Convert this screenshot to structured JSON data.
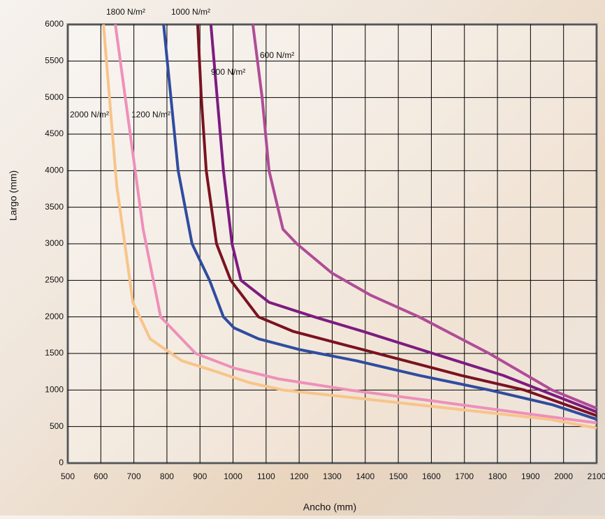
{
  "chart_data": {
    "type": "line",
    "x_label": "Ancho (mm)",
    "y_label": "Largo  (mm)",
    "xlim": [
      500,
      2100
    ],
    "ylim": [
      0,
      6000
    ],
    "xticks": [
      500,
      600,
      700,
      800,
      900,
      1000,
      1100,
      1200,
      1300,
      1400,
      1500,
      1600,
      1700,
      1800,
      1900,
      2000,
      2100
    ],
    "yticks": [
      0,
      500,
      1000,
      1500,
      2000,
      2500,
      3000,
      3500,
      4000,
      4500,
      5000,
      5500,
      6000
    ],
    "grid": true,
    "series": [
      {
        "name": "2000 N/m²",
        "color": "#f8c48a",
        "x": [
          608,
          648,
          697,
          749,
          845,
          950,
          1050,
          1151,
          1352,
          1553,
          1754,
          1955,
          2100
        ],
        "values": [
          6000,
          3800,
          2200,
          1700,
          1400,
          1250,
          1100,
          1000,
          900,
          800,
          700,
          600,
          480
        ]
      },
      {
        "name": "1800 N/m²",
        "color": "#ee90b9",
        "x": [
          644,
          728,
          781,
          887,
          1003,
          1140,
          1352,
          1605,
          1849,
          2100
        ],
        "values": [
          6000,
          3200,
          2000,
          1500,
          1300,
          1150,
          1000,
          850,
          700,
          550
        ]
      },
      {
        "name": "1200 N/m²",
        "color": "#2f4c9f",
        "x": [
          790,
          834,
          876,
          929,
          971,
          1003,
          1077,
          1204,
          1373,
          1563,
          1775,
          1965,
          2100
        ],
        "values": [
          6000,
          4000,
          3000,
          2500,
          2000,
          1850,
          1700,
          1550,
          1400,
          1200,
          1000,
          800,
          600
        ]
      },
      {
        "name": "1000 N/m²",
        "color": "#7a1220",
        "x": [
          893,
          904,
          919,
          950,
          993,
          1077,
          1183,
          1352,
          1521,
          1690,
          1881,
          2100
        ],
        "values": [
          6000,
          5000,
          4000,
          3000,
          2500,
          2000,
          1800,
          1600,
          1400,
          1200,
          1000,
          650
        ]
      },
      {
        "name": "900 N/m²",
        "color": "#7e1b80",
        "x": [
          933,
          971,
          997,
          1024,
          1109,
          1246,
          1394,
          1605,
          1817,
          2100
        ],
        "values": [
          6000,
          4000,
          3000,
          2500,
          2200,
          2000,
          1800,
          1500,
          1200,
          700
        ]
      },
      {
        "name": "600 N/m²",
        "color": "#b04c96",
        "x": [
          1060,
          1088,
          1109,
          1151,
          1193,
          1299,
          1415,
          1563,
          1775,
          1965,
          2100
        ],
        "values": [
          6000,
          5000,
          4000,
          3200,
          3000,
          2600,
          2300,
          2000,
          1500,
          1000,
          750
        ]
      }
    ]
  }
}
